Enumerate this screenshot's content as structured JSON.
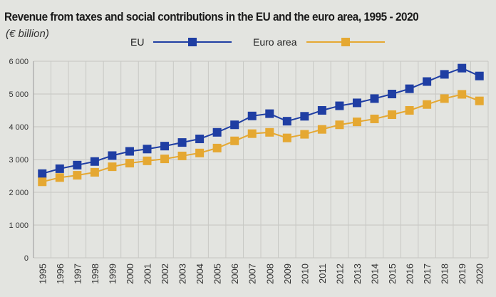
{
  "chart_data": {
    "type": "line",
    "title": "Revenue from taxes and social contributions in the EU and the euro area, 1995 - 2020",
    "subtitle": "(€ billion)",
    "xlabel": "",
    "ylabel": "",
    "ylim": [
      0,
      6000
    ],
    "yticks": [
      0,
      1000,
      2000,
      3000,
      4000,
      5000,
      6000
    ],
    "ytick_labels": [
      "0",
      "1 000",
      "2 000",
      "3 000",
      "4 000",
      "5 000",
      "6 000"
    ],
    "grid": true,
    "legend_placement": "top",
    "categories": [
      "1995",
      "1996",
      "1997",
      "1998",
      "1999",
      "2000",
      "2001",
      "2002",
      "2003",
      "2004",
      "2005",
      "2006",
      "2007",
      "2008",
      "2009",
      "2010",
      "2011",
      "2012",
      "2013",
      "2014",
      "2015",
      "2016",
      "2017",
      "2018",
      "2019",
      "2020"
    ],
    "series": [
      {
        "name": "EU",
        "color": "#1f3ea3",
        "marker": "square",
        "values": [
          2570,
          2720,
          2830,
          2940,
          3120,
          3250,
          3320,
          3410,
          3520,
          3630,
          3830,
          4060,
          4330,
          4400,
          4170,
          4320,
          4500,
          4640,
          4730,
          4860,
          5000,
          5160,
          5380,
          5600,
          5790,
          5550
        ]
      },
      {
        "name": "Euro area",
        "color": "#e5a832",
        "marker": "square",
        "values": [
          2320,
          2450,
          2520,
          2610,
          2780,
          2890,
          2960,
          3020,
          3110,
          3200,
          3350,
          3570,
          3790,
          3830,
          3660,
          3770,
          3920,
          4060,
          4150,
          4240,
          4370,
          4500,
          4680,
          4860,
          4990,
          4790
        ]
      }
    ]
  }
}
